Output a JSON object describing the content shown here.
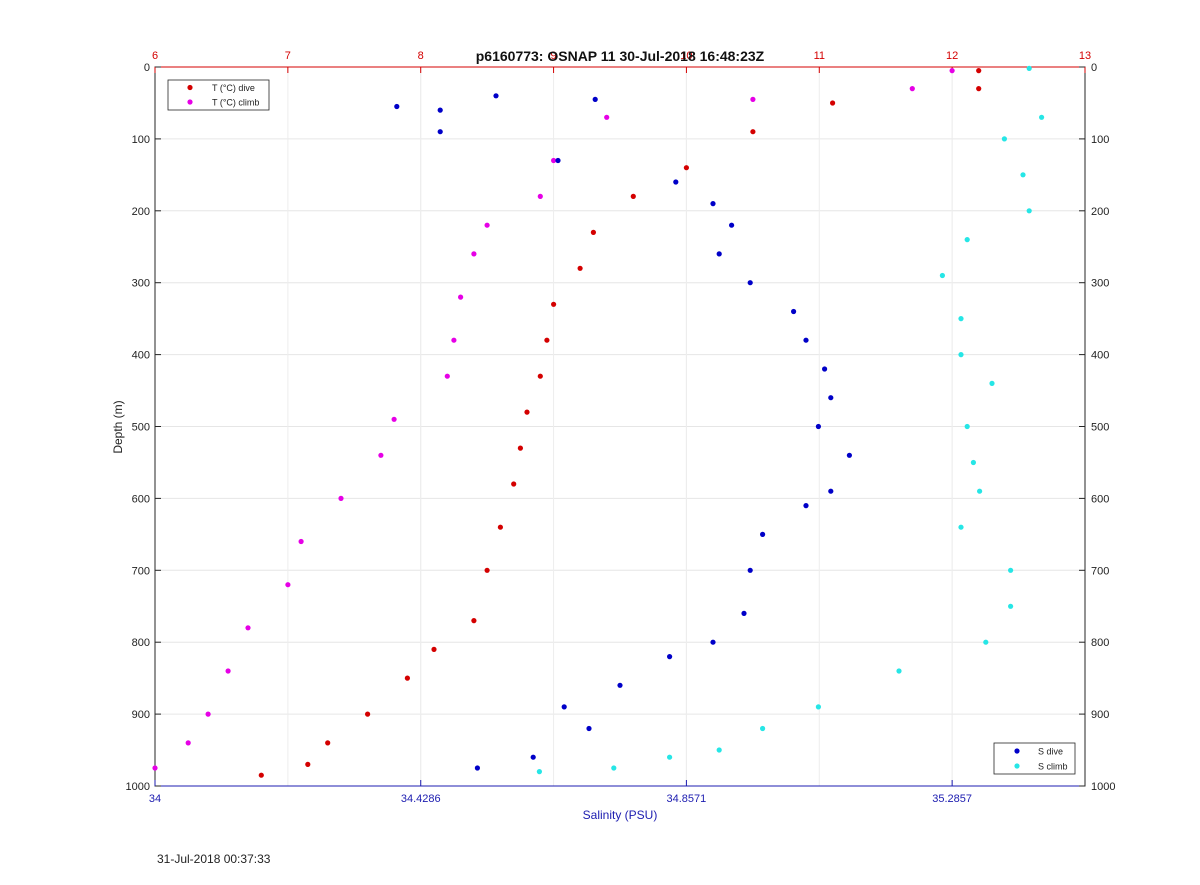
{
  "chart_data": {
    "type": "scatter",
    "title": "p6160773: OSNAP 11 30-Jul-2018 16:48:23Z",
    "ylabel": "Depth (m)",
    "xlabel": "Salinity (PSU)",
    "ylim": [
      0,
      1000
    ],
    "y_reversed": true,
    "yticks": [
      "0",
      "100",
      "200",
      "300",
      "400",
      "500",
      "600",
      "700",
      "800",
      "900",
      "1000"
    ],
    "x_bottom": {
      "label": "Salinity (PSU)",
      "range": [
        34,
        35.5
      ],
      "ticks": [
        "34",
        "34.4286",
        "34.8571",
        "35.2857"
      ],
      "tick_values": [
        34,
        34.4286,
        34.8571,
        35.2857
      ]
    },
    "x_top": {
      "range": [
        6,
        13
      ],
      "ticks": [
        "6",
        "7",
        "8",
        "9",
        "10",
        "11",
        "12",
        "13"
      ],
      "tick_values": [
        6,
        7,
        8,
        9,
        10,
        11,
        12,
        13
      ]
    },
    "grid": true,
    "legends": [
      {
        "placement": "top-left",
        "entries": [
          "T (°C) dive",
          "T (°C) climb"
        ]
      },
      {
        "placement": "bottom-right",
        "entries": [
          "S dive",
          "S climb"
        ]
      }
    ],
    "series": [
      {
        "name": "T (°C) dive",
        "axis": "top",
        "color": "#d40000",
        "points": [
          [
            12.2,
            5
          ],
          [
            12.2,
            30
          ],
          [
            11.1,
            50
          ],
          [
            10.5,
            90
          ],
          [
            10.0,
            140
          ],
          [
            9.6,
            180
          ],
          [
            9.3,
            230
          ],
          [
            9.2,
            280
          ],
          [
            9.0,
            330
          ],
          [
            8.95,
            380
          ],
          [
            8.9,
            430
          ],
          [
            8.8,
            480
          ],
          [
            8.75,
            530
          ],
          [
            8.7,
            580
          ],
          [
            8.6,
            640
          ],
          [
            8.5,
            700
          ],
          [
            8.4,
            770
          ],
          [
            8.1,
            810
          ],
          [
            7.9,
            850
          ],
          [
            7.6,
            900
          ],
          [
            7.3,
            940
          ],
          [
            7.15,
            970
          ],
          [
            6.8,
            985
          ]
        ]
      },
      {
        "name": "T (°C) climb",
        "axis": "top",
        "color": "#e600e6",
        "points": [
          [
            12.0,
            5
          ],
          [
            11.7,
            30
          ],
          [
            10.5,
            45
          ],
          [
            9.4,
            70
          ],
          [
            9.0,
            130
          ],
          [
            8.9,
            180
          ],
          [
            8.5,
            220
          ],
          [
            8.4,
            260
          ],
          [
            8.3,
            320
          ],
          [
            8.25,
            380
          ],
          [
            8.2,
            430
          ],
          [
            7.8,
            490
          ],
          [
            7.7,
            540
          ],
          [
            7.4,
            600
          ],
          [
            7.1,
            660
          ],
          [
            7.0,
            720
          ],
          [
            6.7,
            780
          ],
          [
            6.55,
            840
          ],
          [
            6.4,
            900
          ],
          [
            6.25,
            940
          ],
          [
            6.0,
            975
          ]
        ]
      },
      {
        "name": "S dive",
        "axis": "bottom",
        "color": "#0000c8",
        "points": [
          [
            34.39,
            55
          ],
          [
            34.46,
            60
          ],
          [
            34.55,
            40
          ],
          [
            34.71,
            45
          ],
          [
            34.46,
            90
          ],
          [
            34.65,
            130
          ],
          [
            34.84,
            160
          ],
          [
            34.9,
            190
          ],
          [
            34.93,
            220
          ],
          [
            34.91,
            260
          ],
          [
            34.96,
            300
          ],
          [
            35.03,
            340
          ],
          [
            35.05,
            380
          ],
          [
            35.08,
            420
          ],
          [
            35.09,
            460
          ],
          [
            35.07,
            500
          ],
          [
            35.12,
            540
          ],
          [
            35.09,
            590
          ],
          [
            35.05,
            610
          ],
          [
            34.98,
            650
          ],
          [
            34.96,
            700
          ],
          [
            34.95,
            760
          ],
          [
            34.9,
            800
          ],
          [
            34.83,
            820
          ],
          [
            34.75,
            860
          ],
          [
            34.66,
            890
          ],
          [
            34.7,
            920
          ],
          [
            34.61,
            960
          ],
          [
            34.52,
            975
          ]
        ]
      },
      {
        "name": "S climb",
        "axis": "bottom",
        "color": "#26e6e6",
        "points": [
          [
            35.41,
            2
          ],
          [
            35.43,
            70
          ],
          [
            35.37,
            100
          ],
          [
            35.4,
            150
          ],
          [
            35.41,
            200
          ],
          [
            35.31,
            240
          ],
          [
            35.27,
            290
          ],
          [
            35.3,
            350
          ],
          [
            35.3,
            400
          ],
          [
            35.35,
            440
          ],
          [
            35.31,
            500
          ],
          [
            35.32,
            550
          ],
          [
            35.33,
            590
          ],
          [
            35.3,
            640
          ],
          [
            35.38,
            700
          ],
          [
            35.38,
            750
          ],
          [
            35.34,
            800
          ],
          [
            35.2,
            840
          ],
          [
            35.07,
            890
          ],
          [
            34.98,
            920
          ],
          [
            34.91,
            950
          ],
          [
            34.83,
            960
          ],
          [
            34.74,
            975
          ],
          [
            34.62,
            980
          ]
        ]
      }
    ]
  },
  "footer": {
    "timestamp": "31-Jul-2018 00:37:33"
  }
}
